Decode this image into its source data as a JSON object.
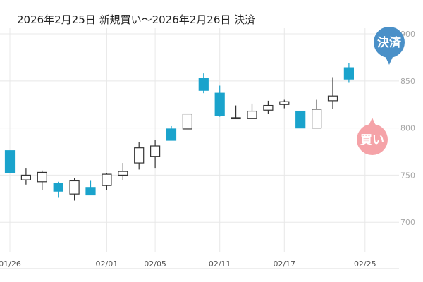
{
  "header": {
    "title": "2026年2月25日 新規買い～2026年2月26日 決済"
  },
  "colors": {
    "up_body": "#ffffff",
    "up_border": "#333333",
    "down_body": "#1aa3cc",
    "grid": "#e8e8e8",
    "settle_marker": "#4a90c8",
    "buy_marker": "#f5a3a8"
  },
  "markers": {
    "settle_label": "決済",
    "buy_label": "買い"
  },
  "chart_data": {
    "type": "candlestick",
    "title": "2026年2月25日 新規買い～2026年2月26日 決済",
    "ylim": [
      668,
      906
    ],
    "y_ticks": [
      700,
      750,
      800,
      850,
      900
    ],
    "x_tick_labels": [
      {
        "index": 0,
        "label": "01/26"
      },
      {
        "index": 6,
        "label": "02/01"
      },
      {
        "index": 9,
        "label": "02/05"
      },
      {
        "index": 13,
        "label": "02/11"
      },
      {
        "index": 17,
        "label": "02/17"
      },
      {
        "index": 22,
        "label": "02/25"
      }
    ],
    "candles": [
      {
        "open": 776,
        "high": 776,
        "low": 753,
        "close": 753
      },
      {
        "open": 745,
        "high": 757,
        "low": 740,
        "close": 750
      },
      {
        "open": 743,
        "high": 755,
        "low": 734,
        "close": 753
      },
      {
        "open": 741,
        "high": 743,
        "low": 726,
        "close": 733
      },
      {
        "open": 730,
        "high": 747,
        "low": 723,
        "close": 744
      },
      {
        "open": 737,
        "high": 744,
        "low": 729,
        "close": 729
      },
      {
        "open": 739,
        "high": 752,
        "low": 734,
        "close": 751
      },
      {
        "open": 750,
        "high": 763,
        "low": 745,
        "close": 754
      },
      {
        "open": 763,
        "high": 785,
        "low": 756,
        "close": 779
      },
      {
        "open": 770,
        "high": 787,
        "low": 757,
        "close": 781
      },
      {
        "open": 799,
        "high": 802,
        "low": 787,
        "close": 787
      },
      {
        "open": 799,
        "high": 815,
        "low": 799,
        "close": 815
      },
      {
        "open": 853,
        "high": 858,
        "low": 837,
        "close": 840
      },
      {
        "open": 837,
        "high": 845,
        "low": 812,
        "close": 813
      },
      {
        "open": 811,
        "high": 824,
        "low": 810,
        "close": 811
      },
      {
        "open": 810,
        "high": 826,
        "low": 810,
        "close": 818
      },
      {
        "open": 819,
        "high": 829,
        "low": 815,
        "close": 824
      },
      {
        "open": 825,
        "high": 830,
        "low": 821,
        "close": 828
      },
      {
        "open": 818,
        "high": 818,
        "low": 800,
        "close": 800
      },
      {
        "open": 800,
        "high": 830,
        "low": 800,
        "close": 820
      },
      {
        "open": 829,
        "high": 854,
        "low": 820,
        "close": 834
      },
      {
        "open": 864,
        "high": 869,
        "low": 848,
        "close": 852
      }
    ]
  }
}
